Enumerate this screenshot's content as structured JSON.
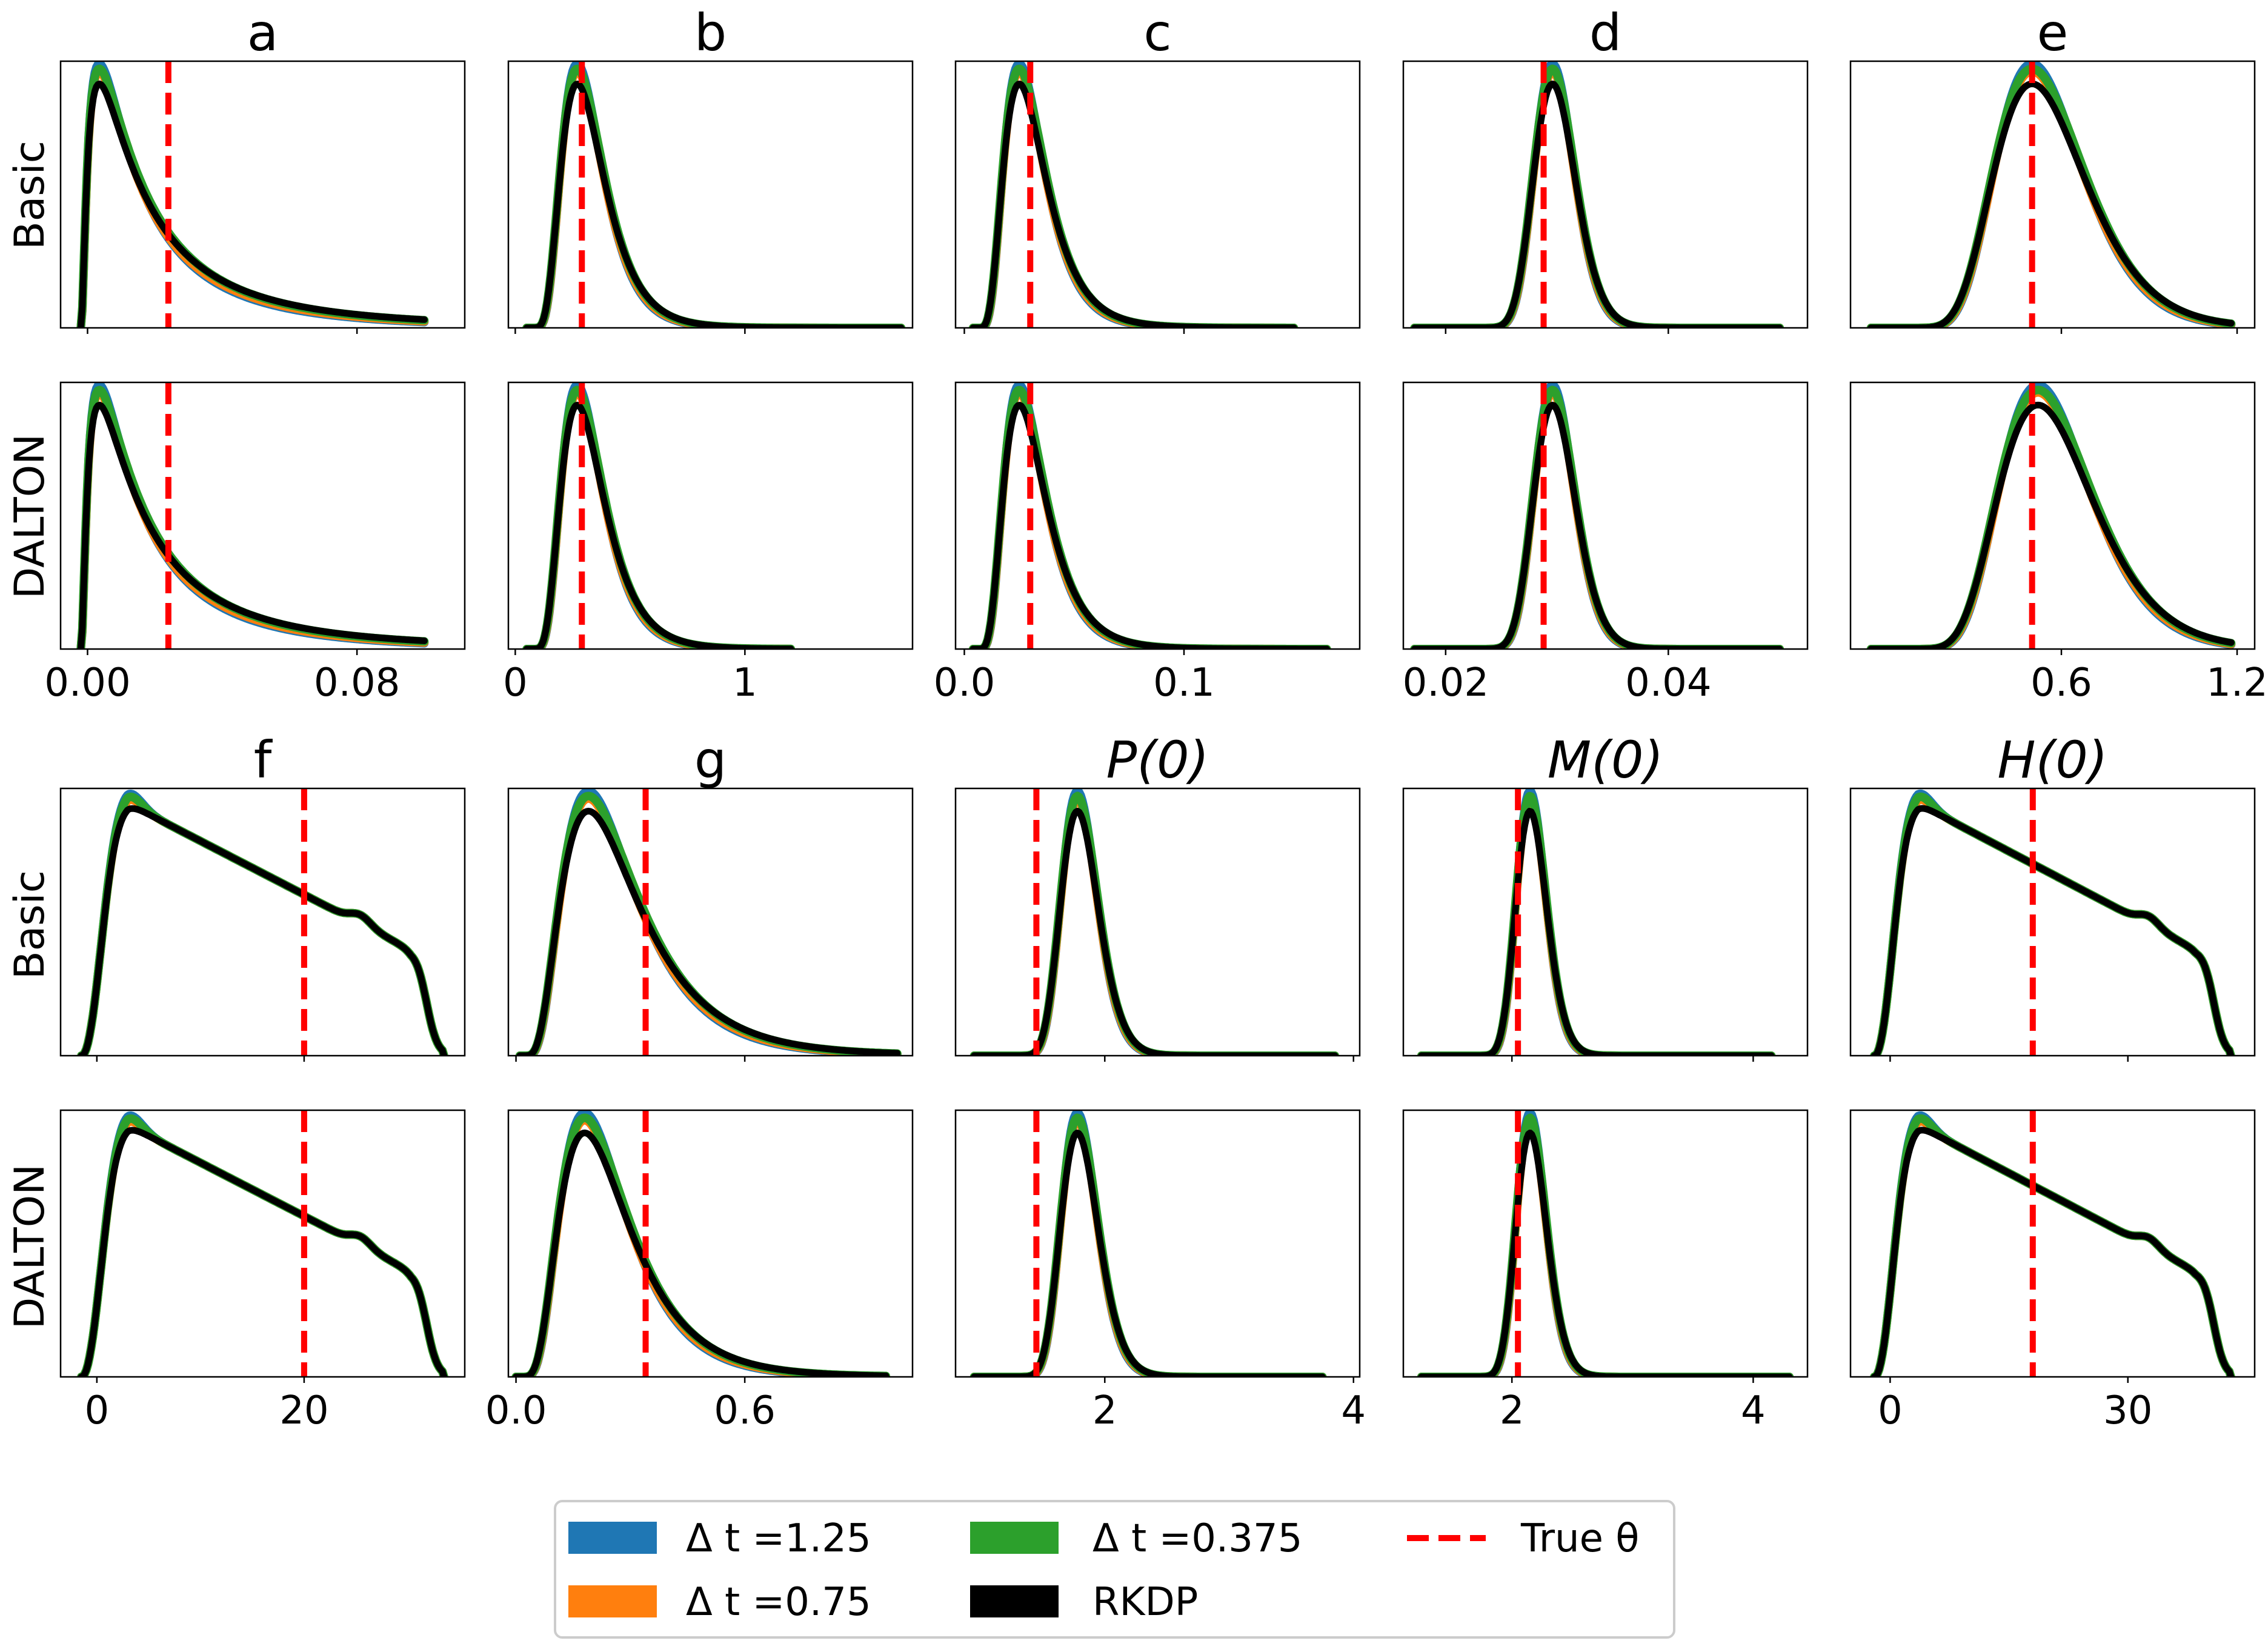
{
  "figure": {
    "row_labels": [
      "Basic",
      "DALTON",
      "Basic",
      "DALTON"
    ],
    "legend": {
      "items": [
        {
          "label": "Δ t =1.25",
          "color": "#1f77b4",
          "kind": "patch"
        },
        {
          "label": "Δ t =0.75",
          "color": "#ff7f0e",
          "kind": "patch"
        },
        {
          "label": "Δ t =0.375",
          "color": "#2ca02c",
          "kind": "patch"
        },
        {
          "label": "RKDP",
          "color": "#000000",
          "kind": "patch"
        },
        {
          "label": "True θ",
          "color": "#ff0000",
          "kind": "dashed"
        }
      ]
    }
  },
  "chart_data": [
    {
      "type": "line",
      "title": "a",
      "xlim": [
        -0.008,
        0.112
      ],
      "xticks": [
        0.0,
        0.08
      ],
      "xticklabels": [
        "0.00",
        "0.08"
      ],
      "true_value": 0.024,
      "basic": {
        "shape": "lognormal",
        "peak": 0.0035,
        "sigma": 1.1,
        "range": [
          -0.002,
          0.1
        ]
      },
      "dalton": {
        "shape": "lognormal",
        "peak": 0.0035,
        "sigma": 1.1,
        "range": [
          -0.002,
          0.1
        ]
      }
    },
    {
      "type": "line",
      "title": "b",
      "xlim": [
        -0.03,
        1.73
      ],
      "xticks": [
        0,
        1
      ],
      "xticklabels": [
        "0",
        "1"
      ],
      "true_value": 0.29,
      "basic": {
        "shape": "lognormal",
        "peak": 0.27,
        "sigma": 0.42,
        "range": [
          0.05,
          1.68
        ]
      },
      "dalton": {
        "shape": "lognormal",
        "peak": 0.27,
        "sigma": 0.42,
        "range": [
          0.05,
          1.2
        ]
      }
    },
    {
      "type": "line",
      "title": "c",
      "xlim": [
        -0.004,
        0.18
      ],
      "xticks": [
        0.0,
        0.1
      ],
      "xticklabels": [
        "0.0",
        "0.1"
      ],
      "true_value": 0.03,
      "basic": {
        "shape": "lognormal",
        "peak": 0.025,
        "sigma": 0.45,
        "range": [
          0.004,
          0.15
        ]
      },
      "dalton": {
        "shape": "lognormal",
        "peak": 0.025,
        "sigma": 0.45,
        "range": [
          0.004,
          0.165
        ]
      }
    },
    {
      "type": "line",
      "title": "d",
      "xlim": [
        0.0162,
        0.0525
      ],
      "xticks": [
        0.02,
        0.04
      ],
      "xticklabels": [
        "0.02",
        "0.04"
      ],
      "true_value": 0.0288,
      "basic": {
        "shape": "lognormal",
        "peak": 0.0296,
        "sigma": 0.15,
        "range": [
          0.0172,
          0.05
        ]
      },
      "dalton": {
        "shape": "lognormal",
        "peak": 0.0296,
        "sigma": 0.15,
        "range": [
          0.0172,
          0.05
        ]
      }
    },
    {
      "type": "line",
      "title": "e",
      "xlim": [
        -0.12,
        1.26
      ],
      "xticks": [
        0.6,
        1.2
      ],
      "xticklabels": [
        "0.6",
        "1.2"
      ],
      "true_value": 0.5,
      "basic": {
        "shape": "lognormal",
        "peak": 0.5,
        "sigma": 0.28,
        "range": [
          -0.05,
          1.18
        ]
      },
      "dalton": {
        "shape": "lognormal",
        "peak": 0.52,
        "sigma": 0.28,
        "range": [
          -0.05,
          1.18
        ]
      }
    },
    {
      "type": "line",
      "title": "f",
      "xlim": [
        -3.5,
        35.5
      ],
      "xticks": [
        0,
        20
      ],
      "xticklabels": [
        "0",
        "20"
      ],
      "true_value": 20,
      "basic": {
        "shape": "plateau",
        "min": -1.5,
        "max": 33.5,
        "peak": 3.0
      },
      "dalton": {
        "shape": "plateau",
        "min": -1.5,
        "max": 33.5,
        "peak": 3.0
      }
    },
    {
      "type": "line",
      "title": "g",
      "xlim": [
        -0.02,
        1.04
      ],
      "xticks": [
        0.0,
        0.6
      ],
      "xticklabels": [
        "0.0",
        "0.6"
      ],
      "true_value": 0.34,
      "basic": {
        "shape": "lognormal",
        "peak": 0.19,
        "sigma": 0.55,
        "range": [
          0.01,
          1.0
        ]
      },
      "dalton": {
        "shape": "lognormal",
        "peak": 0.18,
        "sigma": 0.5,
        "range": [
          0.0,
          0.97
        ]
      }
    },
    {
      "type": "line",
      "title": "P(0)",
      "xlim": [
        0.8,
        4.05
      ],
      "xticks": [
        2,
        4
      ],
      "xticklabels": [
        "2",
        "4"
      ],
      "true_value": 1.45,
      "basic": {
        "shape": "lognormal",
        "peak": 1.78,
        "sigma": 0.18,
        "range": [
          0.95,
          3.85
        ]
      },
      "dalton": {
        "shape": "lognormal",
        "peak": 1.78,
        "sigma": 0.18,
        "range": [
          0.95,
          3.75
        ]
      }
    },
    {
      "type": "line",
      "title": "M(0)",
      "xlim": [
        1.1,
        4.45
      ],
      "xticks": [
        2,
        4
      ],
      "xticklabels": [
        "2",
        "4"
      ],
      "true_value": 2.05,
      "basic": {
        "shape": "lognormal",
        "peak": 2.15,
        "sigma": 0.14,
        "range": [
          1.25,
          4.15
        ]
      },
      "dalton": {
        "shape": "lognormal",
        "peak": 2.15,
        "sigma": 0.14,
        "range": [
          1.25,
          4.3
        ]
      }
    },
    {
      "type": "line",
      "title": "H(0)",
      "xlim": [
        -5,
        46
      ],
      "xticks": [
        0,
        30
      ],
      "xticklabels": [
        "0",
        "30"
      ],
      "true_value": 18,
      "basic": {
        "shape": "plateau",
        "min": -2,
        "max": 43,
        "peak": 3.5
      },
      "dalton": {
        "shape": "plateau",
        "min": -2,
        "max": 43,
        "peak": 3.5
      }
    }
  ]
}
